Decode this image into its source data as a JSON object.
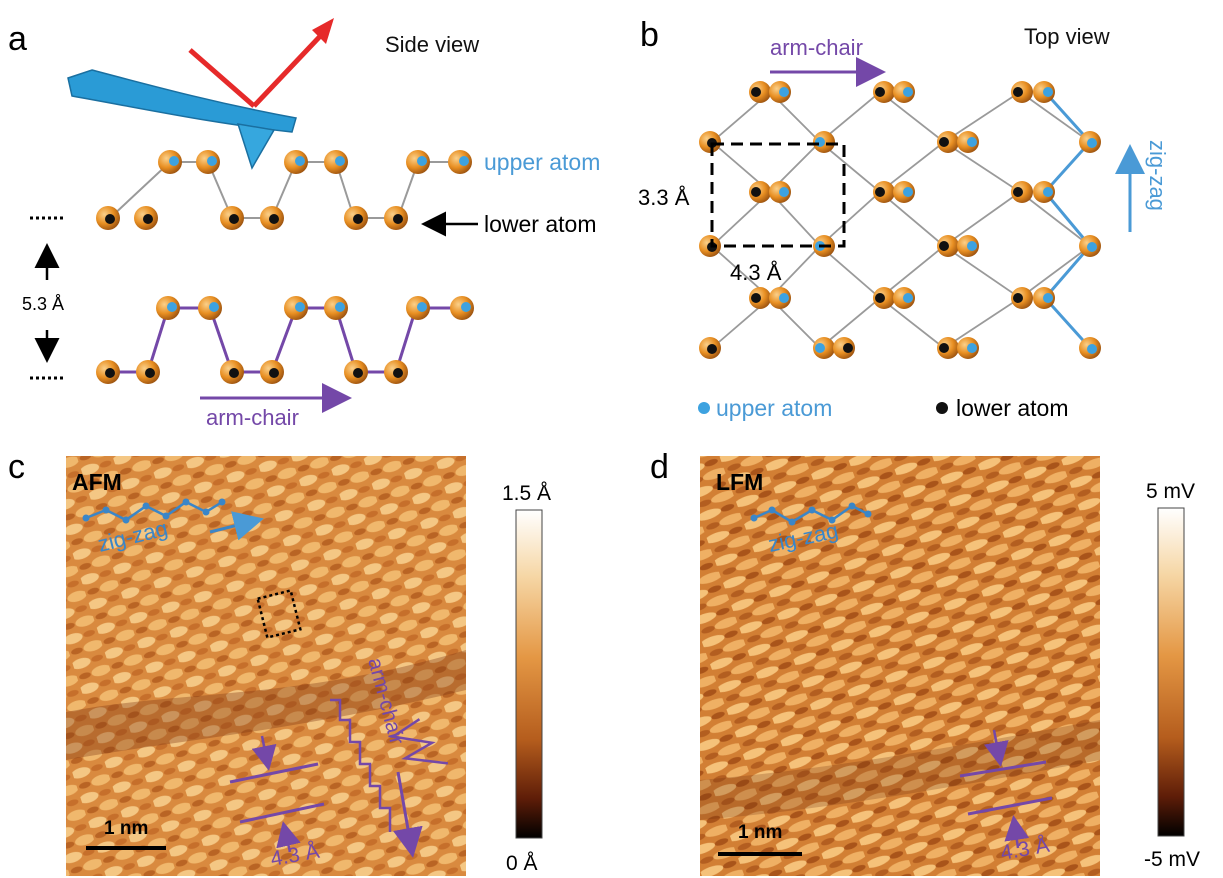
{
  "panels": {
    "a": {
      "label": "a",
      "title": "Side view",
      "upper_label": "upper atom",
      "lower_label": "lower atom",
      "spacing": "5.3 Å",
      "direction": "arm-chair"
    },
    "b": {
      "label": "b",
      "title": "Top view",
      "direction_arm": "arm-chair",
      "direction_zig": "zig-zag",
      "dim_a": "3.3 Å",
      "dim_b": "4.3 Å",
      "legend_upper": "upper atom",
      "legend_lower": "lower atom"
    },
    "c": {
      "label": "c",
      "mode": "AFM",
      "zigzag": "zig-zag",
      "armchair": "arm-chair",
      "period": "4.3 Å",
      "scalebar": "1 nm",
      "colorbar_max": "1.5 Å",
      "colorbar_min": "0 Å"
    },
    "d": {
      "label": "d",
      "mode": "LFM",
      "zigzag": "zig-zag",
      "period": "4.3 Å",
      "scalebar": "1 nm",
      "colorbar_max": "5 mV",
      "colorbar_min": "-5 mV"
    }
  },
  "colors": {
    "purple": "#7448a8",
    "blue": "#4a9ad6",
    "atom": "#e8922a",
    "red": "#e62a2a",
    "cantilever": "#2a9bd6"
  }
}
